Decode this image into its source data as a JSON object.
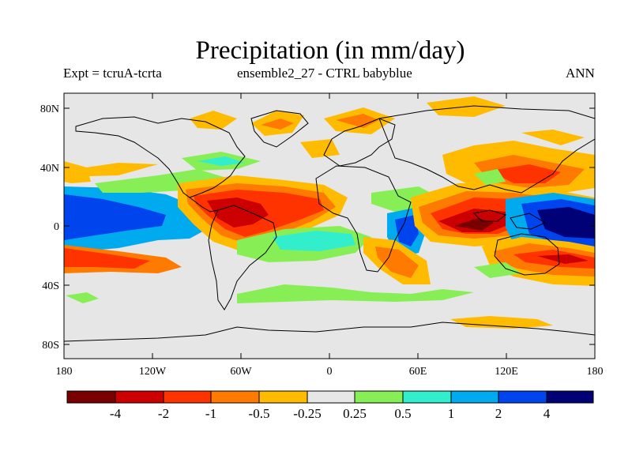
{
  "title": "Precipitation (in mm/day)",
  "subtitle_left": "Expt = tcruA-tcrta",
  "subtitle_center": "ensemble2_27 - CTRL babyblue",
  "subtitle_right": "ANN",
  "lat_ticks": [
    "80N",
    "40N",
    "0",
    "40S",
    "80S"
  ],
  "lon_ticks": [
    "180",
    "120W",
    "60W",
    "0",
    "60E",
    "120E",
    "180"
  ],
  "colorbar": {
    "labels": [
      "-4",
      "-2",
      "-1",
      "-0.5",
      "-0.25",
      "0.25",
      "0.5",
      "1",
      "2",
      "4"
    ],
    "colors": [
      "#7a0000",
      "#cc0000",
      "#ff3300",
      "#ff7a00",
      "#ffbb00",
      "#e6e6e6",
      "#88ee55",
      "#33eecc",
      "#00aaee",
      "#0044ee",
      "#000077"
    ]
  },
  "background_color": "#e6e6e6"
}
